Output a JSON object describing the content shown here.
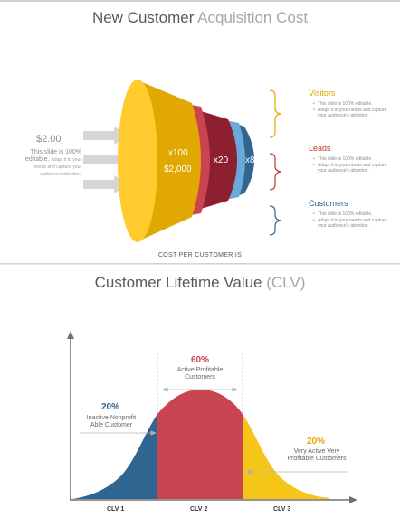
{
  "slide1": {
    "title_dark": "New Customer",
    "title_light": "Acquisition Cost",
    "left_price": "$2.00",
    "left_desc_bold": "This slide is 100% editable.",
    "left_desc_rest": "Adapt it to your needs and capture your audience's attention.",
    "funnel": {
      "seg1_mult": "x100",
      "seg1_price": "$2,000",
      "seg2_mult": "x20",
      "seg3_mult": "x8"
    },
    "right_items": [
      {
        "title": "Visitors",
        "color": "#e0a800",
        "lines": [
          "This slide is 100% editable.",
          "Adapt it to your needs and capture your audience's attention."
        ]
      },
      {
        "title": "Leads",
        "color": "#c0392b",
        "lines": [
          "This slide is 100% editable.",
          "Adapt it to your needs and capture your audience's attention."
        ]
      },
      {
        "title": "Customers",
        "color": "#2e6591",
        "lines": [
          "This slide is 100% editable.",
          "Adapt it to your needs and capture your audience's attention."
        ]
      }
    ],
    "footer": "COST PER CUSTOMER IS",
    "colors": {
      "yellow": "#f5c518",
      "yellow_dark": "#e0a800",
      "red": "#c84450",
      "darkred": "#8e1f2e",
      "lightblue": "#6aaad8",
      "blue": "#2e6591"
    }
  },
  "slide2": {
    "title_dark": "Customer Lifetime Value",
    "title_light": "(CLV)",
    "left": {
      "pct": "20%",
      "label_line1": "Inactive Nonprofit",
      "label_line2": "Able Customer"
    },
    "middle": {
      "pct": "60%",
      "label_line1": "Active Profitable",
      "label_line2": "Customers"
    },
    "right": {
      "pct": "20%",
      "label_line1": "Very Active Very",
      "label_line2": "Profitable Customers"
    },
    "x_labels": [
      "CLV 1",
      "CLV 2",
      "CLV 3"
    ],
    "colors": {
      "blue": "#2e6591",
      "red": "#c84450",
      "yellow": "#f5c518"
    }
  }
}
